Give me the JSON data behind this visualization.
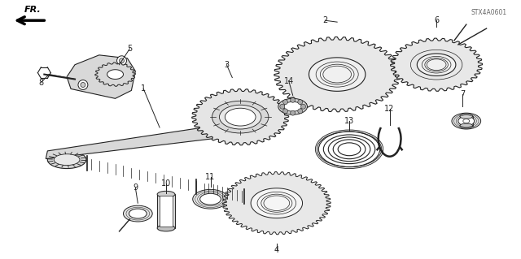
{
  "background_color": "#ffffff",
  "border_color": "#cccccc",
  "fig_width": 6.4,
  "fig_height": 3.19,
  "dpi": 100,
  "line_color": "#222222",
  "gear_fill": "#f0f0f0",
  "gear_dark": "#c8c8c8",
  "shaft_fill": "#d8d8d8",
  "code_label": "STX4A0601",
  "fr_label": "FR."
}
